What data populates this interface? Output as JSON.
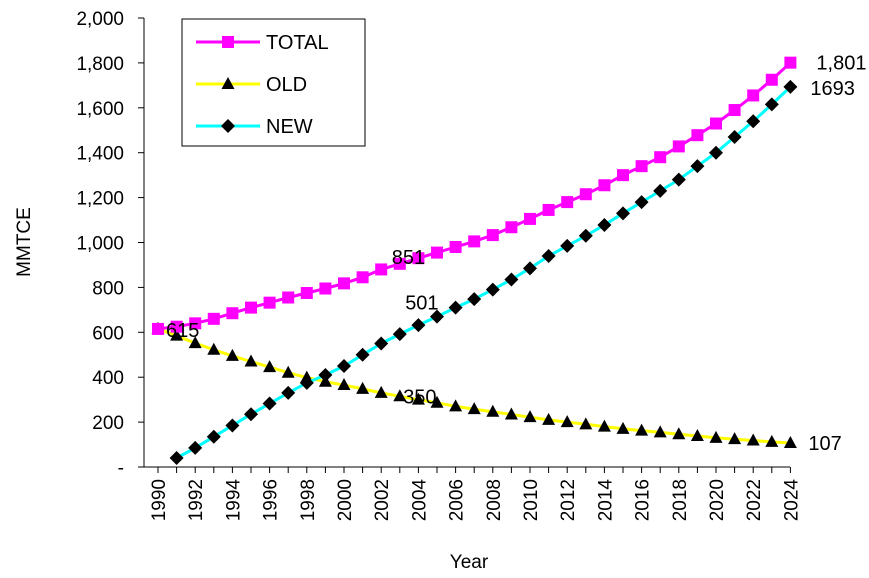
{
  "chart_data": {
    "type": "line",
    "title": "",
    "xlabel": "Year",
    "ylabel": "MMTCE",
    "ylim": [
      0,
      2000
    ],
    "yticks": [
      0,
      200,
      400,
      600,
      800,
      1000,
      1200,
      1400,
      1600,
      1800,
      2000
    ],
    "ytick_labels": [
      "-",
      "200",
      "400",
      "600",
      "800",
      "1,000",
      "1,200",
      "1,400",
      "1,600",
      "1,800",
      "2,000"
    ],
    "xticks": [
      1990,
      1992,
      1994,
      1996,
      1998,
      2000,
      2002,
      2004,
      2006,
      2008,
      2010,
      2012,
      2014,
      2016,
      2018,
      2020,
      2022,
      2024
    ],
    "grid": false,
    "legend_position": "top-left",
    "series": [
      {
        "name": "TOTAL",
        "line_color": "#ff00ff",
        "marker": "square",
        "marker_color": "#ff00ff",
        "x": [
          1990,
          1991,
          1992,
          1993,
          1994,
          1995,
          1996,
          1997,
          1998,
          1999,
          2000,
          2001,
          2002,
          2003,
          2004,
          2005,
          2006,
          2007,
          2008,
          2009,
          2010,
          2011,
          2012,
          2013,
          2014,
          2015,
          2016,
          2017,
          2018,
          2019,
          2020,
          2021,
          2022,
          2023,
          2024
        ],
        "values": [
          615,
          625,
          640,
          660,
          685,
          710,
          732,
          755,
          775,
          795,
          818,
          845,
          880,
          905,
          930,
          955,
          980,
          1005,
          1033,
          1068,
          1105,
          1145,
          1180,
          1215,
          1255,
          1300,
          1340,
          1380,
          1428,
          1478,
          1530,
          1590,
          1655,
          1725,
          1801
        ]
      },
      {
        "name": "OLD",
        "line_color": "#ffff00",
        "marker": "triangle",
        "marker_color": "#000000",
        "x": [
          1990,
          1991,
          1992,
          1993,
          1994,
          1995,
          1996,
          1997,
          1998,
          1999,
          2000,
          2001,
          2002,
          2003,
          2004,
          2005,
          2006,
          2007,
          2008,
          2009,
          2010,
          2011,
          2012,
          2013,
          2014,
          2015,
          2016,
          2017,
          2018,
          2019,
          2020,
          2021,
          2022,
          2023,
          2024
        ],
        "values": [
          615,
          585,
          552,
          522,
          495,
          470,
          445,
          420,
          398,
          380,
          365,
          348,
          330,
          315,
          300,
          286,
          270,
          258,
          246,
          234,
          222,
          210,
          200,
          190,
          180,
          170,
          162,
          154,
          146,
          138,
          130,
          124,
          118,
          112,
          107
        ]
      },
      {
        "name": "NEW",
        "line_color": "#00ffff",
        "marker": "diamond",
        "marker_color": "#000000",
        "x": [
          1991,
          1992,
          1993,
          1994,
          1995,
          1996,
          1997,
          1998,
          1999,
          2000,
          2001,
          2002,
          2003,
          2004,
          2005,
          2006,
          2007,
          2008,
          2009,
          2010,
          2011,
          2012,
          2013,
          2014,
          2015,
          2016,
          2017,
          2018,
          2019,
          2020,
          2021,
          2022,
          2023,
          2024
        ],
        "values": [
          40,
          85,
          135,
          185,
          235,
          283,
          330,
          375,
          410,
          450,
          500,
          550,
          592,
          632,
          670,
          710,
          748,
          790,
          835,
          885,
          940,
          985,
          1030,
          1078,
          1130,
          1180,
          1230,
          1280,
          1340,
          1400,
          1470,
          1540,
          1615,
          1693
        ]
      }
    ],
    "annotations": [
      {
        "text": "615",
        "x": 1990,
        "y": 615
      },
      {
        "text": "851",
        "x": 2003,
        "y": 851
      },
      {
        "text": "501",
        "x": 2002,
        "y": 501
      },
      {
        "text": "350",
        "x": 2002,
        "y": 350
      },
      {
        "text": "1,801",
        "x": 2024,
        "y": 1801
      },
      {
        "text": "1693",
        "x": 2024,
        "y": 1693
      },
      {
        "text": "107",
        "x": 2024,
        "y": 107
      }
    ]
  }
}
